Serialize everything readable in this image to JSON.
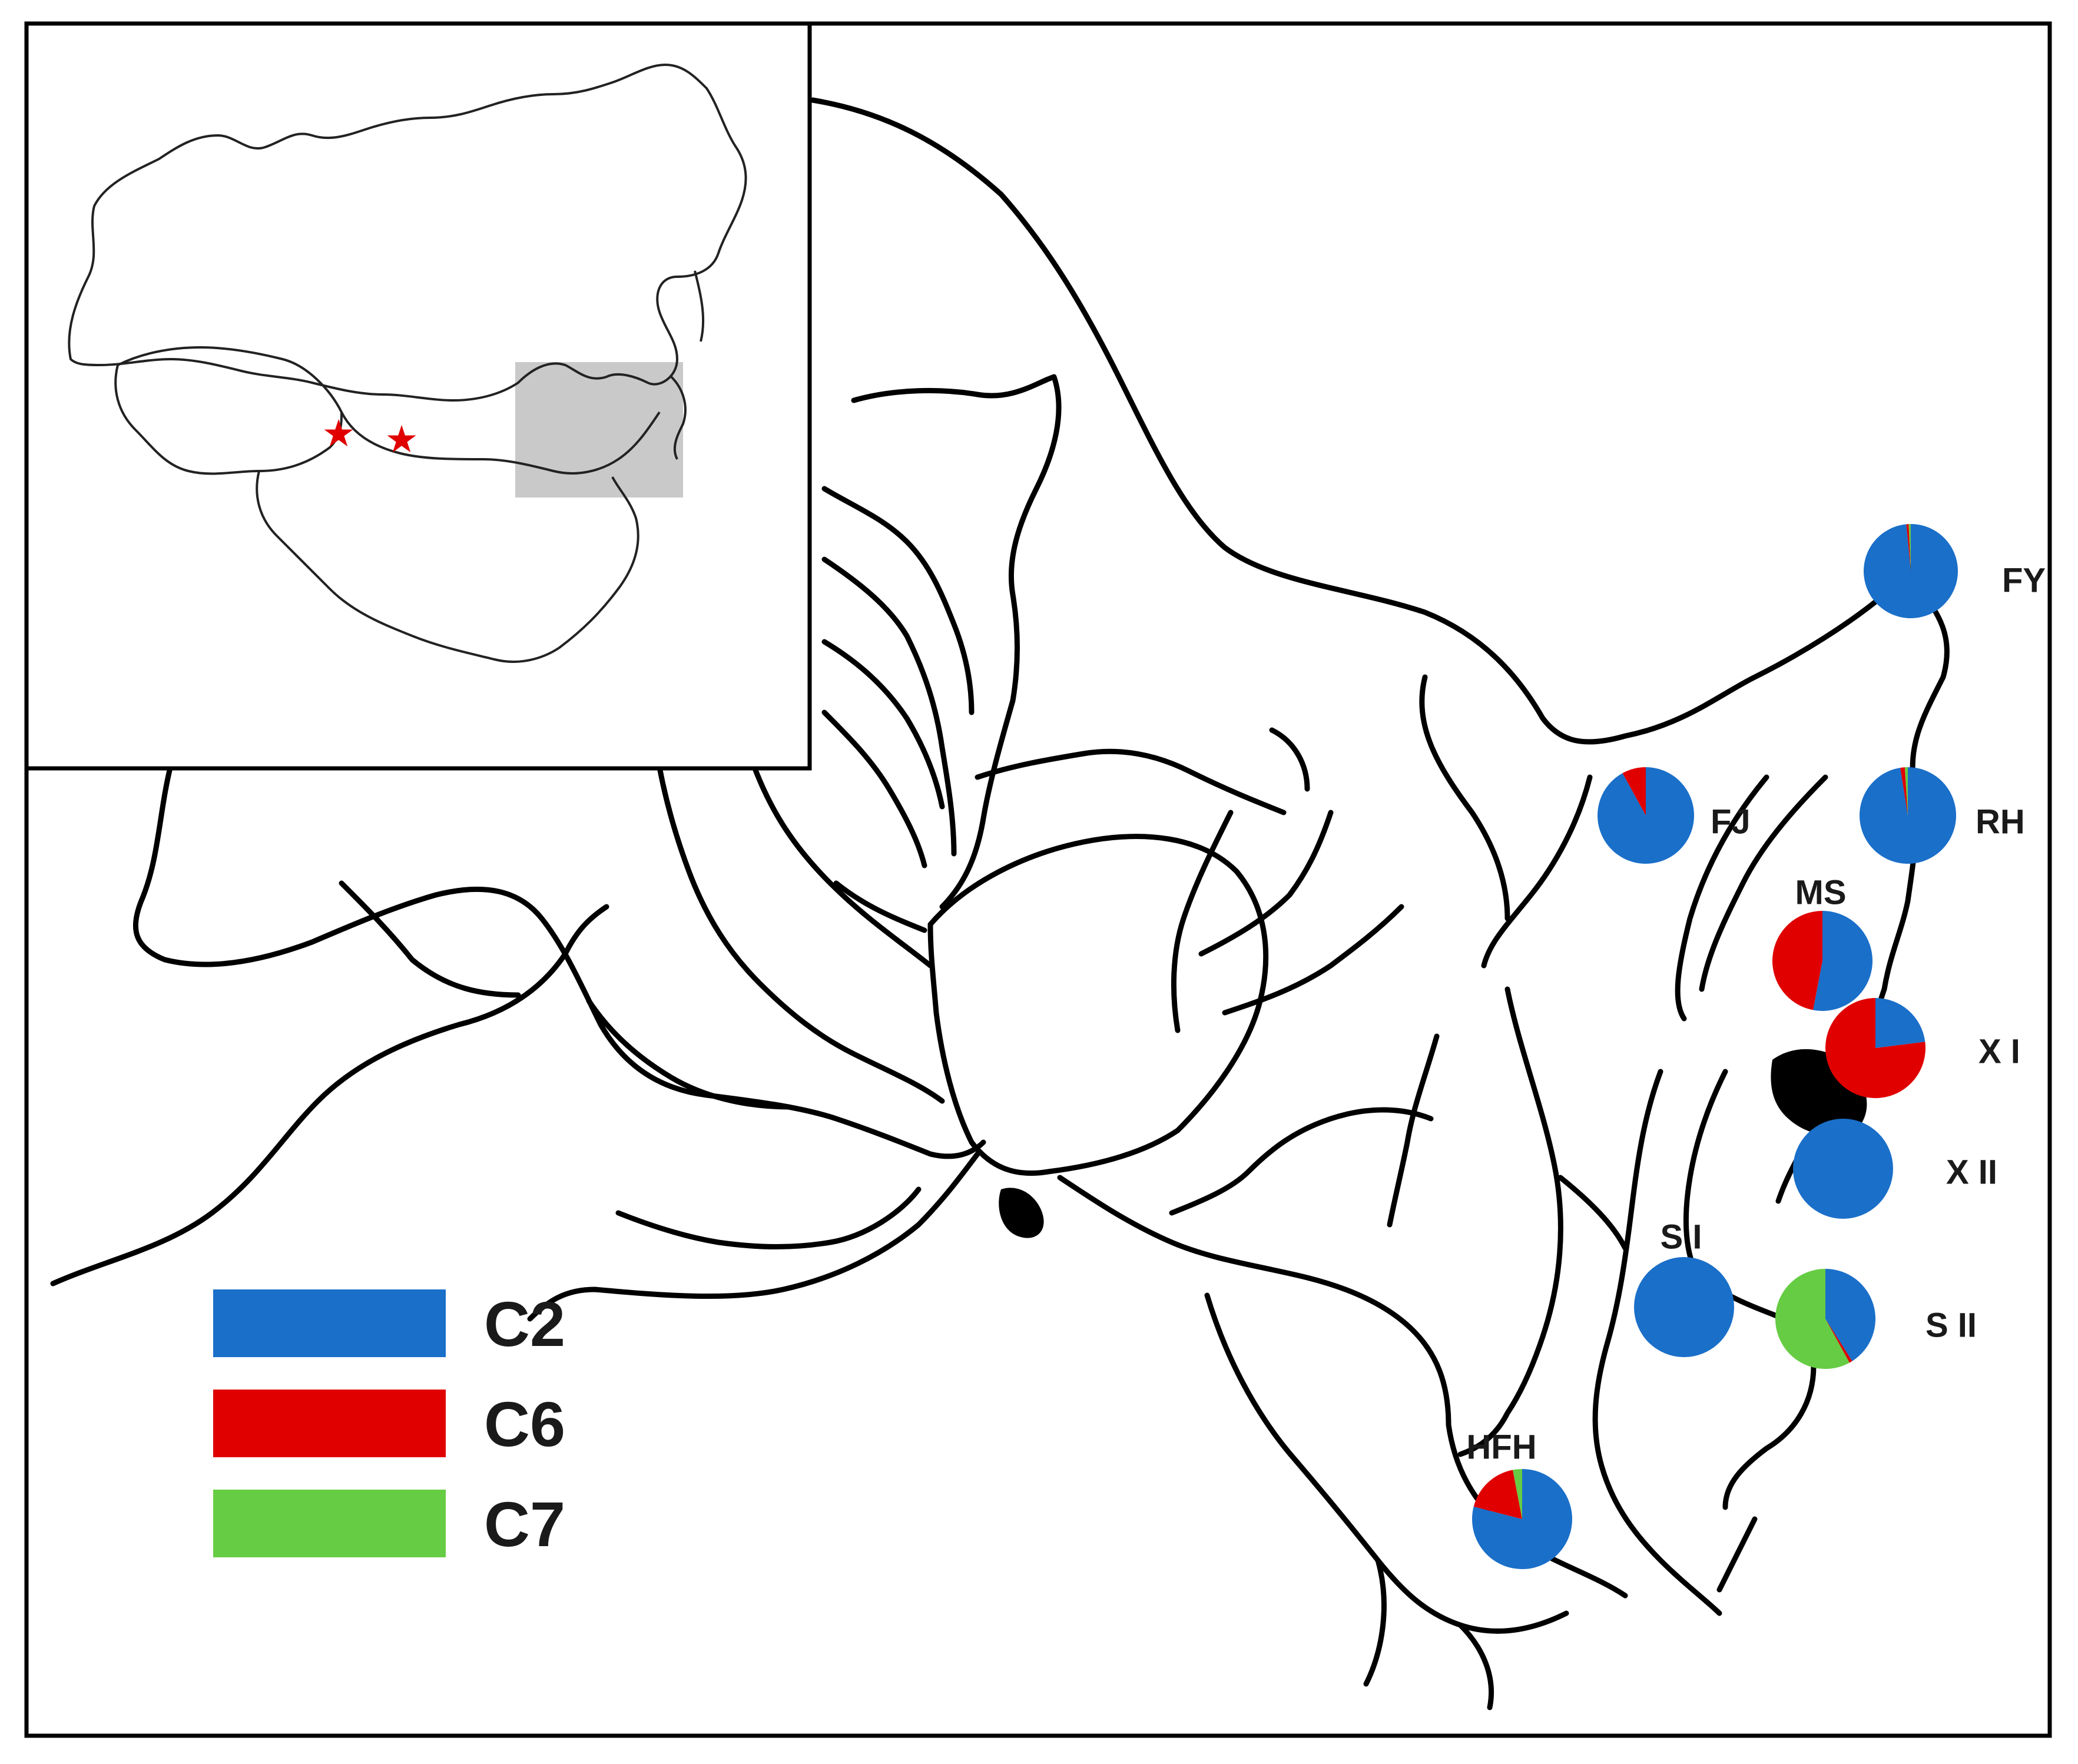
{
  "colors": {
    "C2": "#1a6fc9",
    "C6": "#e00000",
    "C7": "#66cc44",
    "highlight": "#bfbfbf",
    "star": "#e00000"
  },
  "legend": [
    {
      "label": "C2",
      "color": "#1a6fc9"
    },
    {
      "label": "C6",
      "color": "#e00000"
    },
    {
      "label": "C7",
      "color": "#66cc44"
    }
  ],
  "sites": [
    {
      "label": "FY",
      "slices": [
        {
          "group": "C2",
          "value": 0.985
        },
        {
          "group": "C6",
          "value": 0.008
        },
        {
          "group": "C7",
          "value": 0.007
        }
      ]
    },
    {
      "label": "FJ",
      "slices": [
        {
          "group": "C2",
          "value": 0.92
        },
        {
          "group": "C6",
          "value": 0.08
        },
        {
          "group": "C7",
          "value": 0.0
        }
      ]
    },
    {
      "label": "RH",
      "slices": [
        {
          "group": "C2",
          "value": 0.975
        },
        {
          "group": "C6",
          "value": 0.015
        },
        {
          "group": "C7",
          "value": 0.01
        }
      ]
    },
    {
      "label": "MS",
      "slices": [
        {
          "group": "C2",
          "value": 0.53
        },
        {
          "group": "C6",
          "value": 0.47
        },
        {
          "group": "C7",
          "value": 0.0
        }
      ]
    },
    {
      "label": "X I",
      "slices": [
        {
          "group": "C2",
          "value": 0.23
        },
        {
          "group": "C6",
          "value": 0.77
        },
        {
          "group": "C7",
          "value": 0.0
        }
      ]
    },
    {
      "label": "X II",
      "slices": [
        {
          "group": "C2",
          "value": 1.0
        },
        {
          "group": "C6",
          "value": 0.0
        },
        {
          "group": "C7",
          "value": 0.0
        }
      ]
    },
    {
      "label": "S I",
      "slices": [
        {
          "group": "C2",
          "value": 1.0
        },
        {
          "group": "C6",
          "value": 0.0
        },
        {
          "group": "C7",
          "value": 0.0
        }
      ]
    },
    {
      "label": "S II",
      "slices": [
        {
          "group": "C2",
          "value": 0.41
        },
        {
          "group": "C6",
          "value": 0.01
        },
        {
          "group": "C7",
          "value": 0.58
        }
      ]
    },
    {
      "label": "HFH",
      "slices": [
        {
          "group": "C2",
          "value": 0.79
        },
        {
          "group": "C6",
          "value": 0.18
        },
        {
          "group": "C7",
          "value": 0.03
        }
      ]
    }
  ]
}
